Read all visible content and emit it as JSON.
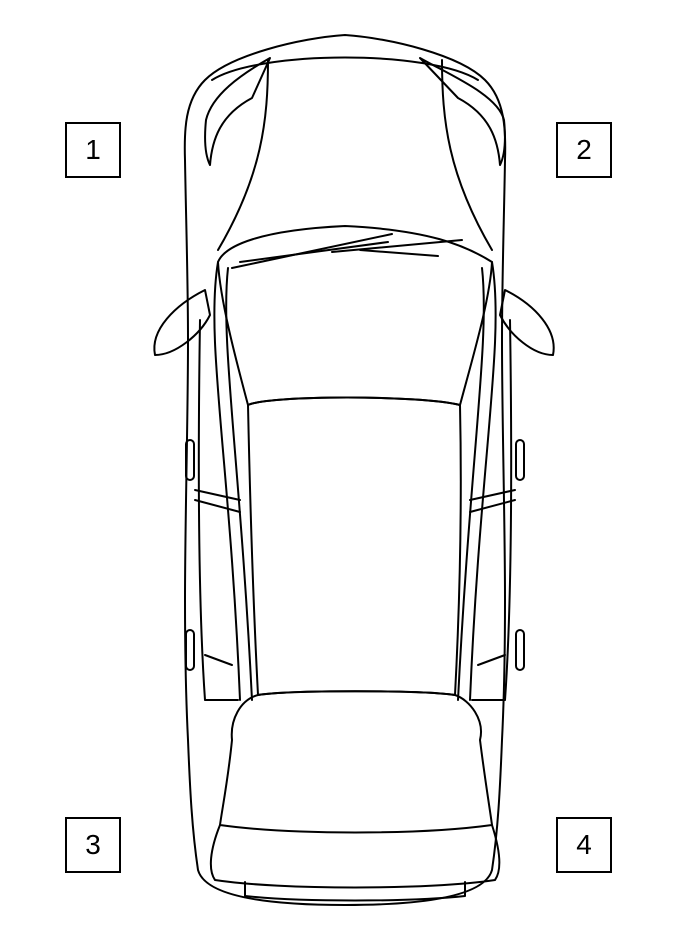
{
  "labels": {
    "front_left": "1",
    "front_right": "2",
    "rear_left": "3",
    "rear_right": "4"
  },
  "colors": {
    "line": "#000000",
    "background": "#ffffff"
  }
}
